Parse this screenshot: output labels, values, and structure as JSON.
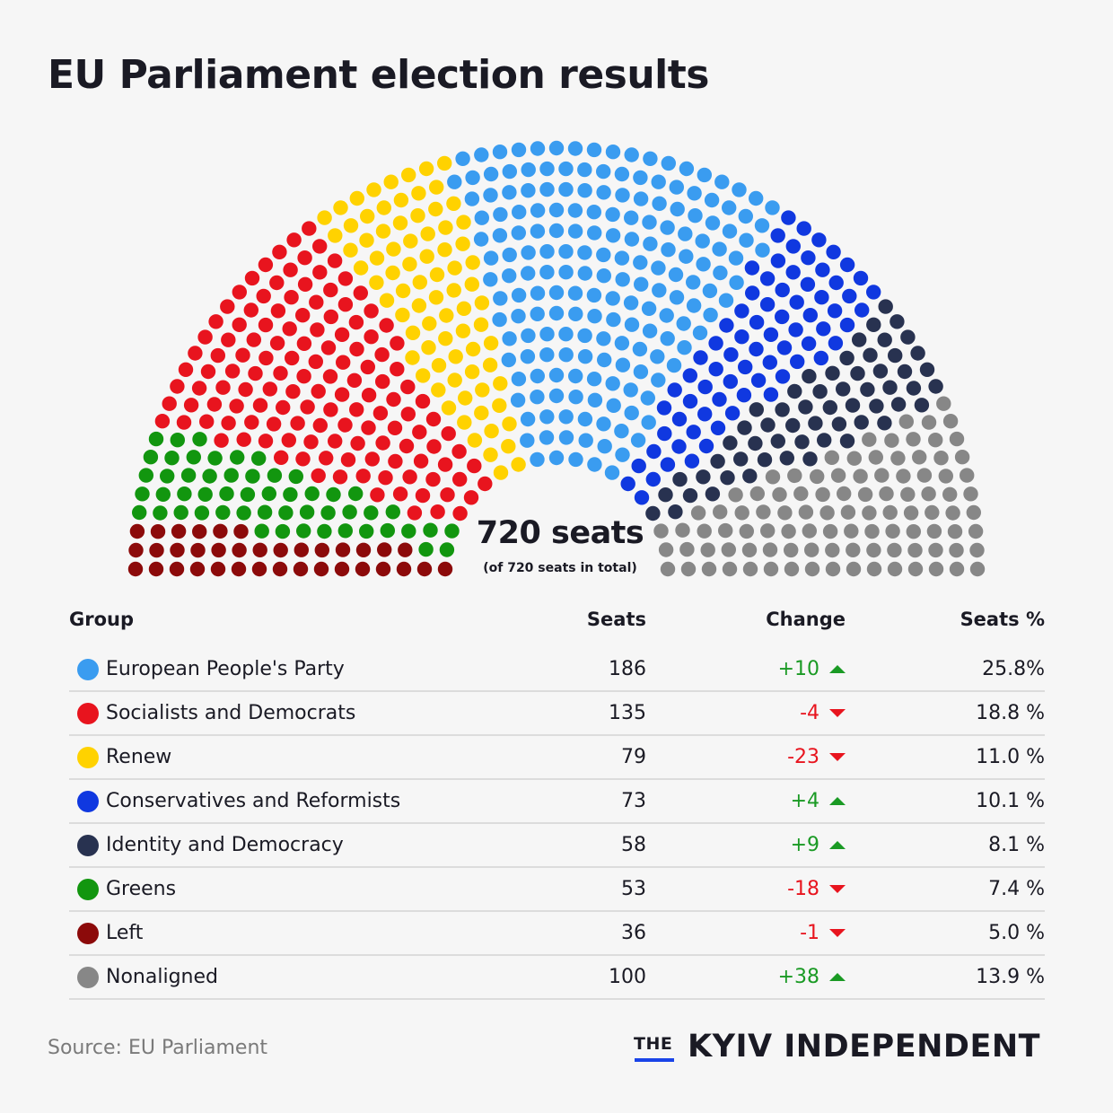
{
  "title": "EU Parliament election results",
  "center_label": {
    "seats": "720 seats",
    "subtitle": "(of 720 seats in total)"
  },
  "table_headers": {
    "group": "Group",
    "seats": "Seats",
    "change": "Change",
    "pct": "Seats %"
  },
  "groups": [
    {
      "name": "European People's Party",
      "seats": "186",
      "change": "+10",
      "direction": "up",
      "pct": "25.8%",
      "color": "#3a9cf0"
    },
    {
      "name": "Socialists and Democrats",
      "seats": "135",
      "change": "-4",
      "direction": "down",
      "pct": "18.8 %",
      "color": "#e8141e"
    },
    {
      "name": "Renew",
      "seats": "79",
      "change": "-23",
      "direction": "down",
      "pct": "11.0 %",
      "color": "#ffd200"
    },
    {
      "name": "Conservatives and Reformists",
      "seats": "73",
      "change": "+4",
      "direction": "up",
      "pct": "10.1 %",
      "color": "#1038e0"
    },
    {
      "name": "Identity and Democracy",
      "seats": "58",
      "change": "+9",
      "direction": "up",
      "pct": "8.1 %",
      "color": "#283250"
    },
    {
      "name": "Greens",
      "seats": "53",
      "change": "-18",
      "direction": "down",
      "pct": "7.4 %",
      "color": "#12960f"
    },
    {
      "name": "Left",
      "seats": "36",
      "change": "-1",
      "direction": "down",
      "pct": "5.0 %",
      "color": "#8c0a0a"
    },
    {
      "name": "Nonaligned",
      "seats": "100",
      "change": "+38",
      "direction": "up",
      "pct": "13.9 %",
      "color": "#878787"
    }
  ],
  "chart_data": {
    "type": "hemicycle",
    "title": "EU Parliament election results",
    "total_seats": 720,
    "seat_order": [
      "Left",
      "Greens",
      "Socialists and Democrats",
      "Renew",
      "European People's Party",
      "Conservatives and Reformists",
      "Identity and Democracy",
      "Nonaligned"
    ],
    "series": [
      {
        "name": "European People's Party",
        "seats": 186,
        "change": 10,
        "pct": 25.8
      },
      {
        "name": "Socialists and Democrats",
        "seats": 135,
        "change": -4,
        "pct": 18.8
      },
      {
        "name": "Renew",
        "seats": 79,
        "change": -23,
        "pct": 11.0
      },
      {
        "name": "Conservatives and Reformists",
        "seats": 73,
        "change": 4,
        "pct": 10.1
      },
      {
        "name": "Identity and Democracy",
        "seats": 58,
        "change": 9,
        "pct": 8.1
      },
      {
        "name": "Greens",
        "seats": 53,
        "change": -18,
        "pct": 7.4
      },
      {
        "name": "Left",
        "seats": 36,
        "change": -1,
        "pct": 5.0
      },
      {
        "name": "Nonaligned",
        "seats": 100,
        "change": 38,
        "pct": 13.9
      }
    ]
  },
  "footer": {
    "source": "Source: EU Parliament",
    "brand_the": "THE",
    "brand_name": "KYIV INDEPENDENT"
  }
}
